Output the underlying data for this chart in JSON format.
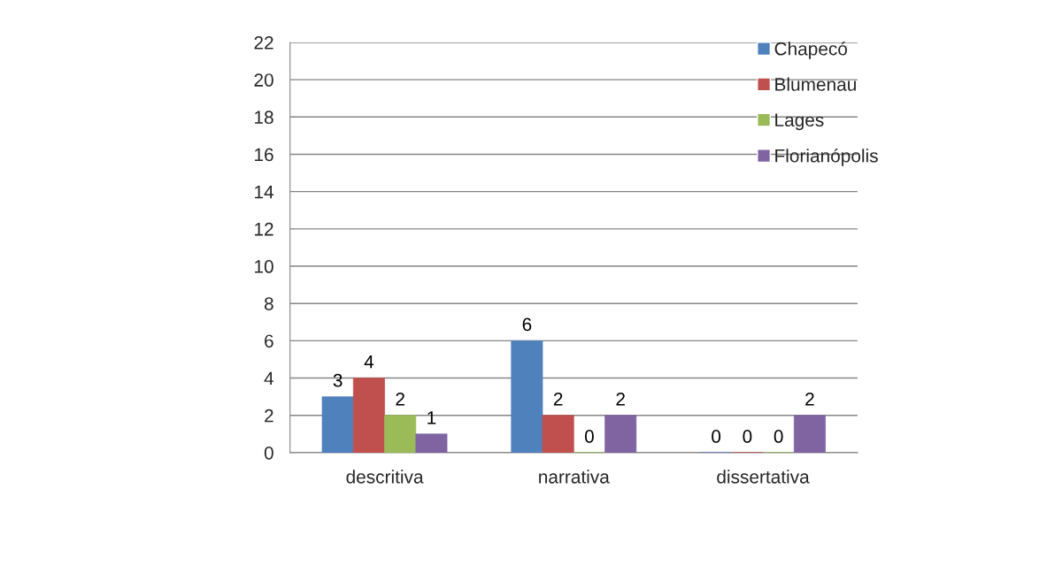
{
  "chart_data": {
    "type": "bar",
    "categories": [
      "descritiva",
      "narrativa",
      "dissertativa"
    ],
    "series": [
      {
        "name": "Chapecó",
        "color": "#4f81bd",
        "values": [
          3,
          6,
          0
        ]
      },
      {
        "name": "Blumenau",
        "color": "#c0504d",
        "values": [
          4,
          2,
          0
        ]
      },
      {
        "name": "Lages",
        "color": "#9bbb59",
        "values": [
          2,
          0,
          0
        ]
      },
      {
        "name": "Florianópolis",
        "color": "#8064a2",
        "values": [
          1,
          2,
          2
        ]
      }
    ],
    "ylim": [
      0,
      22
    ],
    "yticks": [
      0,
      2,
      4,
      6,
      8,
      10,
      12,
      14,
      16,
      18,
      20,
      22
    ],
    "grid": "y",
    "legend": "top right",
    "data_labels": true
  }
}
